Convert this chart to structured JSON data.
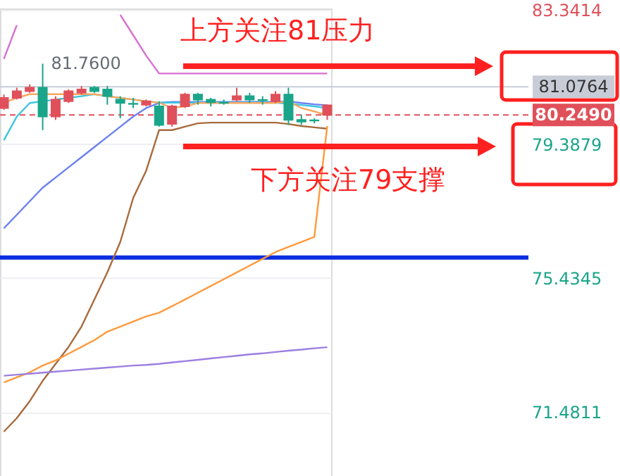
{
  "chart_data": {
    "type": "candlestick",
    "categories": [
      null,
      null,
      null,
      null,
      null,
      null,
      null,
      null,
      null,
      null,
      null,
      null,
      null,
      null,
      null,
      null,
      null,
      null,
      null,
      null,
      null,
      null,
      null,
      null,
      null,
      null
    ],
    "ohlc": [
      [
        80.75,
        80.85,
        80.4,
        80.45
      ],
      [
        80.95,
        81.05,
        80.7,
        80.75
      ],
      [
        81.05,
        81.15,
        80.9,
        80.95
      ],
      [
        80.2,
        81.76,
        79.8,
        81.05
      ],
      [
        80.7,
        80.8,
        80.1,
        80.2
      ],
      [
        80.95,
        81.0,
        80.6,
        80.65
      ],
      [
        81.0,
        81.1,
        80.85,
        80.9
      ],
      [
        80.95,
        81.1,
        80.9,
        81.05
      ],
      [
        80.8,
        81.1,
        80.55,
        81.0
      ],
      [
        80.6,
        80.8,
        80.15,
        80.7
      ],
      [
        80.57,
        80.75,
        80.45,
        80.58
      ],
      [
        80.65,
        80.7,
        80.5,
        80.55
      ],
      [
        79.95,
        80.65,
        79.9,
        80.5
      ],
      [
        80.5,
        80.55,
        79.9,
        79.98
      ],
      [
        80.85,
        80.9,
        80.45,
        80.5
      ],
      [
        80.7,
        80.9,
        80.55,
        80.85
      ],
      [
        80.62,
        80.75,
        80.5,
        80.7
      ],
      [
        80.6,
        80.7,
        80.55,
        80.61
      ],
      [
        80.8,
        81.05,
        80.65,
        80.7
      ],
      [
        80.7,
        80.9,
        80.6,
        80.8
      ],
      [
        80.68,
        80.8,
        80.55,
        80.69
      ],
      [
        80.85,
        80.95,
        80.6,
        80.65
      ],
      [
        80.1,
        81.05,
        79.95,
        80.85
      ],
      [
        80.05,
        80.25,
        79.95,
        80.1
      ],
      [
        80.08,
        80.15,
        80.0,
        80.09
      ],
      [
        80.53,
        80.55,
        80.1,
        80.249
      ]
    ],
    "series": [
      {
        "type": "line",
        "color": "#d86fd0",
        "values": [
          81.9,
          82.9,
          null,
          null,
          null,
          null,
          null,
          null,
          null,
          83.2,
          82.6,
          82.0,
          81.47,
          81.47,
          81.47,
          81.47,
          81.47,
          81.47,
          81.47,
          81.47,
          81.47,
          81.47,
          81.47,
          81.47,
          81.47,
          81.47
        ]
      },
      {
        "type": "line",
        "color": "#a86a3c",
        "values": [
          70.9,
          71.3,
          71.8,
          72.4,
          72.9,
          73.4,
          74.0,
          74.8,
          75.6,
          76.5,
          77.8,
          78.6,
          79.8,
          79.8,
          79.9,
          80.0,
          80.02,
          80.02,
          80.02,
          80.02,
          80.02,
          80.02,
          79.98,
          79.92,
          79.88,
          79.84
        ]
      },
      {
        "type": "line",
        "color": "#ff9a3c",
        "values": [
          72.35,
          72.5,
          72.65,
          72.85,
          73.0,
          73.2,
          73.4,
          73.6,
          73.85,
          74.0,
          74.15,
          74.3,
          74.41,
          74.6,
          74.8,
          75.0,
          75.2,
          75.4,
          75.6,
          75.8,
          76.0,
          76.2,
          76.35,
          76.5,
          76.65,
          79.92
        ]
      },
      {
        "type": "line",
        "color": "#9b7fe0",
        "values": [
          72.55,
          72.58,
          72.61,
          72.64,
          72.67,
          72.7,
          72.73,
          72.76,
          72.79,
          72.82,
          72.85,
          72.87,
          72.9,
          72.94,
          72.98,
          73.02,
          73.06,
          73.1,
          73.14,
          73.18,
          73.21,
          73.25,
          73.29,
          73.32,
          73.36,
          73.39
        ]
      },
      {
        "type": "line",
        "color": "#6a80f0",
        "values": [
          76.9,
          77.3,
          77.7,
          78.1,
          78.4,
          78.7,
          79.0,
          79.3,
          79.6,
          79.9,
          80.2,
          80.45,
          80.6,
          80.63,
          80.63,
          80.63,
          80.63,
          80.63,
          80.63,
          80.63,
          80.63,
          80.63,
          80.65,
          80.6,
          80.56,
          80.53
        ]
      },
      {
        "type": "line",
        "color": "#3cc4e0",
        "values": [
          79.5,
          80.2,
          80.6,
          80.65,
          80.7,
          80.75,
          80.8,
          80.86,
          80.8,
          80.75,
          80.7,
          80.65,
          80.61,
          80.61,
          80.61,
          80.61,
          80.61,
          80.61,
          80.61,
          80.61,
          80.61,
          80.61,
          80.58,
          80.54,
          80.5,
          80.45
        ]
      },
      {
        "type": "line",
        "color": "#f5a860",
        "values": [
          80.61,
          80.75,
          80.86,
          80.86,
          80.86,
          80.86,
          80.86,
          80.86,
          80.8,
          80.75,
          80.7,
          80.65,
          80.61,
          80.45,
          80.5,
          80.6,
          80.6,
          80.6,
          80.6,
          80.6,
          80.6,
          80.6,
          80.65,
          80.45,
          80.35,
          80.24
        ]
      }
    ],
    "ylim": [
      69.59,
      83.39
    ],
    "yticks": [
      83.3414,
      79.3879,
      75.4345,
      71.4811
    ],
    "grid": "y",
    "tick_labels": "y",
    "ref_lines": [
      {
        "axis": "y",
        "value": 81.0764,
        "label": "81.0764",
        "color": "#c8ccd6"
      },
      {
        "axis": "y",
        "value": 80.249,
        "label": "80.2490",
        "color": "#e0505a",
        "line_style": "dashed"
      },
      {
        "axis": "y",
        "value": 76.04,
        "color": "#0b2ee0"
      }
    ],
    "annotations": [
      "上方关注81压力",
      "下方关注79支撑",
      "81.7600"
    ]
  }
}
